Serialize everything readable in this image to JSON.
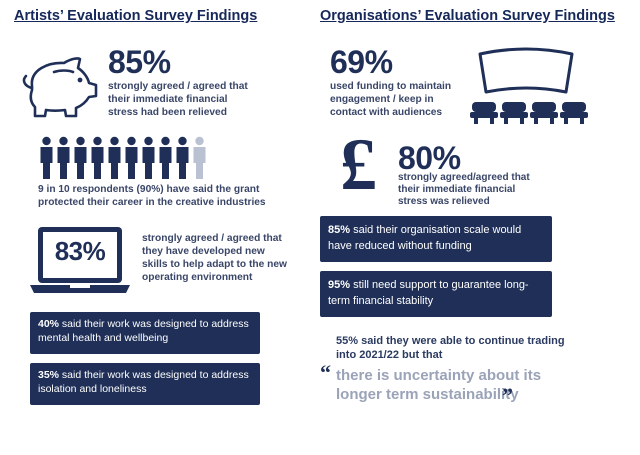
{
  "artists": {
    "heading": "Artists’ Evaluation Survey Findings",
    "stat1": {
      "value": "85%",
      "text": "strongly agreed / agreed that their immediate financial stress had been relieved",
      "icon": "piggy-bank-icon"
    },
    "stat2": {
      "people_total": 10,
      "people_highlighted": 9,
      "text": "9 in 10 respondents (90%) have said the grant protected their career in the creative industries",
      "icon": "people-icon"
    },
    "stat3": {
      "value": "83%",
      "text": "strongly agreed / agreed that they have developed new skills to help adapt to the new operating environment",
      "icon": "laptop-icon"
    },
    "box1": {
      "value": "40%",
      "text": " said their work was designed to address mental health and wellbeing"
    },
    "box2": {
      "value": "35%",
      "text": " said their work was designed to address isolation and loneliness"
    }
  },
  "organisations": {
    "heading": "Organisations’ Evaluation Survey Findings",
    "stat1": {
      "value": "69%",
      "text": "used funding to maintain engagement / keep in contact with audiences",
      "icon": "cinema-screen-icon"
    },
    "stat2": {
      "value": "80%",
      "text": "strongly agreed/agreed that their immediate financial stress was relieved",
      "icon": "pound-sign-icon"
    },
    "box1": {
      "value": "85%",
      "text": " said their organisation scale would have reduced without funding"
    },
    "box2": {
      "value": "95%",
      "text": " still need support to guarantee long-term financial stability"
    },
    "note": "55% said they were able to continue trading into 2021/22 but that",
    "quote": "there is uncertainty about its longer term sustainability"
  },
  "colors": {
    "navy": "#1f2f57",
    "light": "#b9c1d3",
    "quote_grey": "#9aa3b8"
  }
}
